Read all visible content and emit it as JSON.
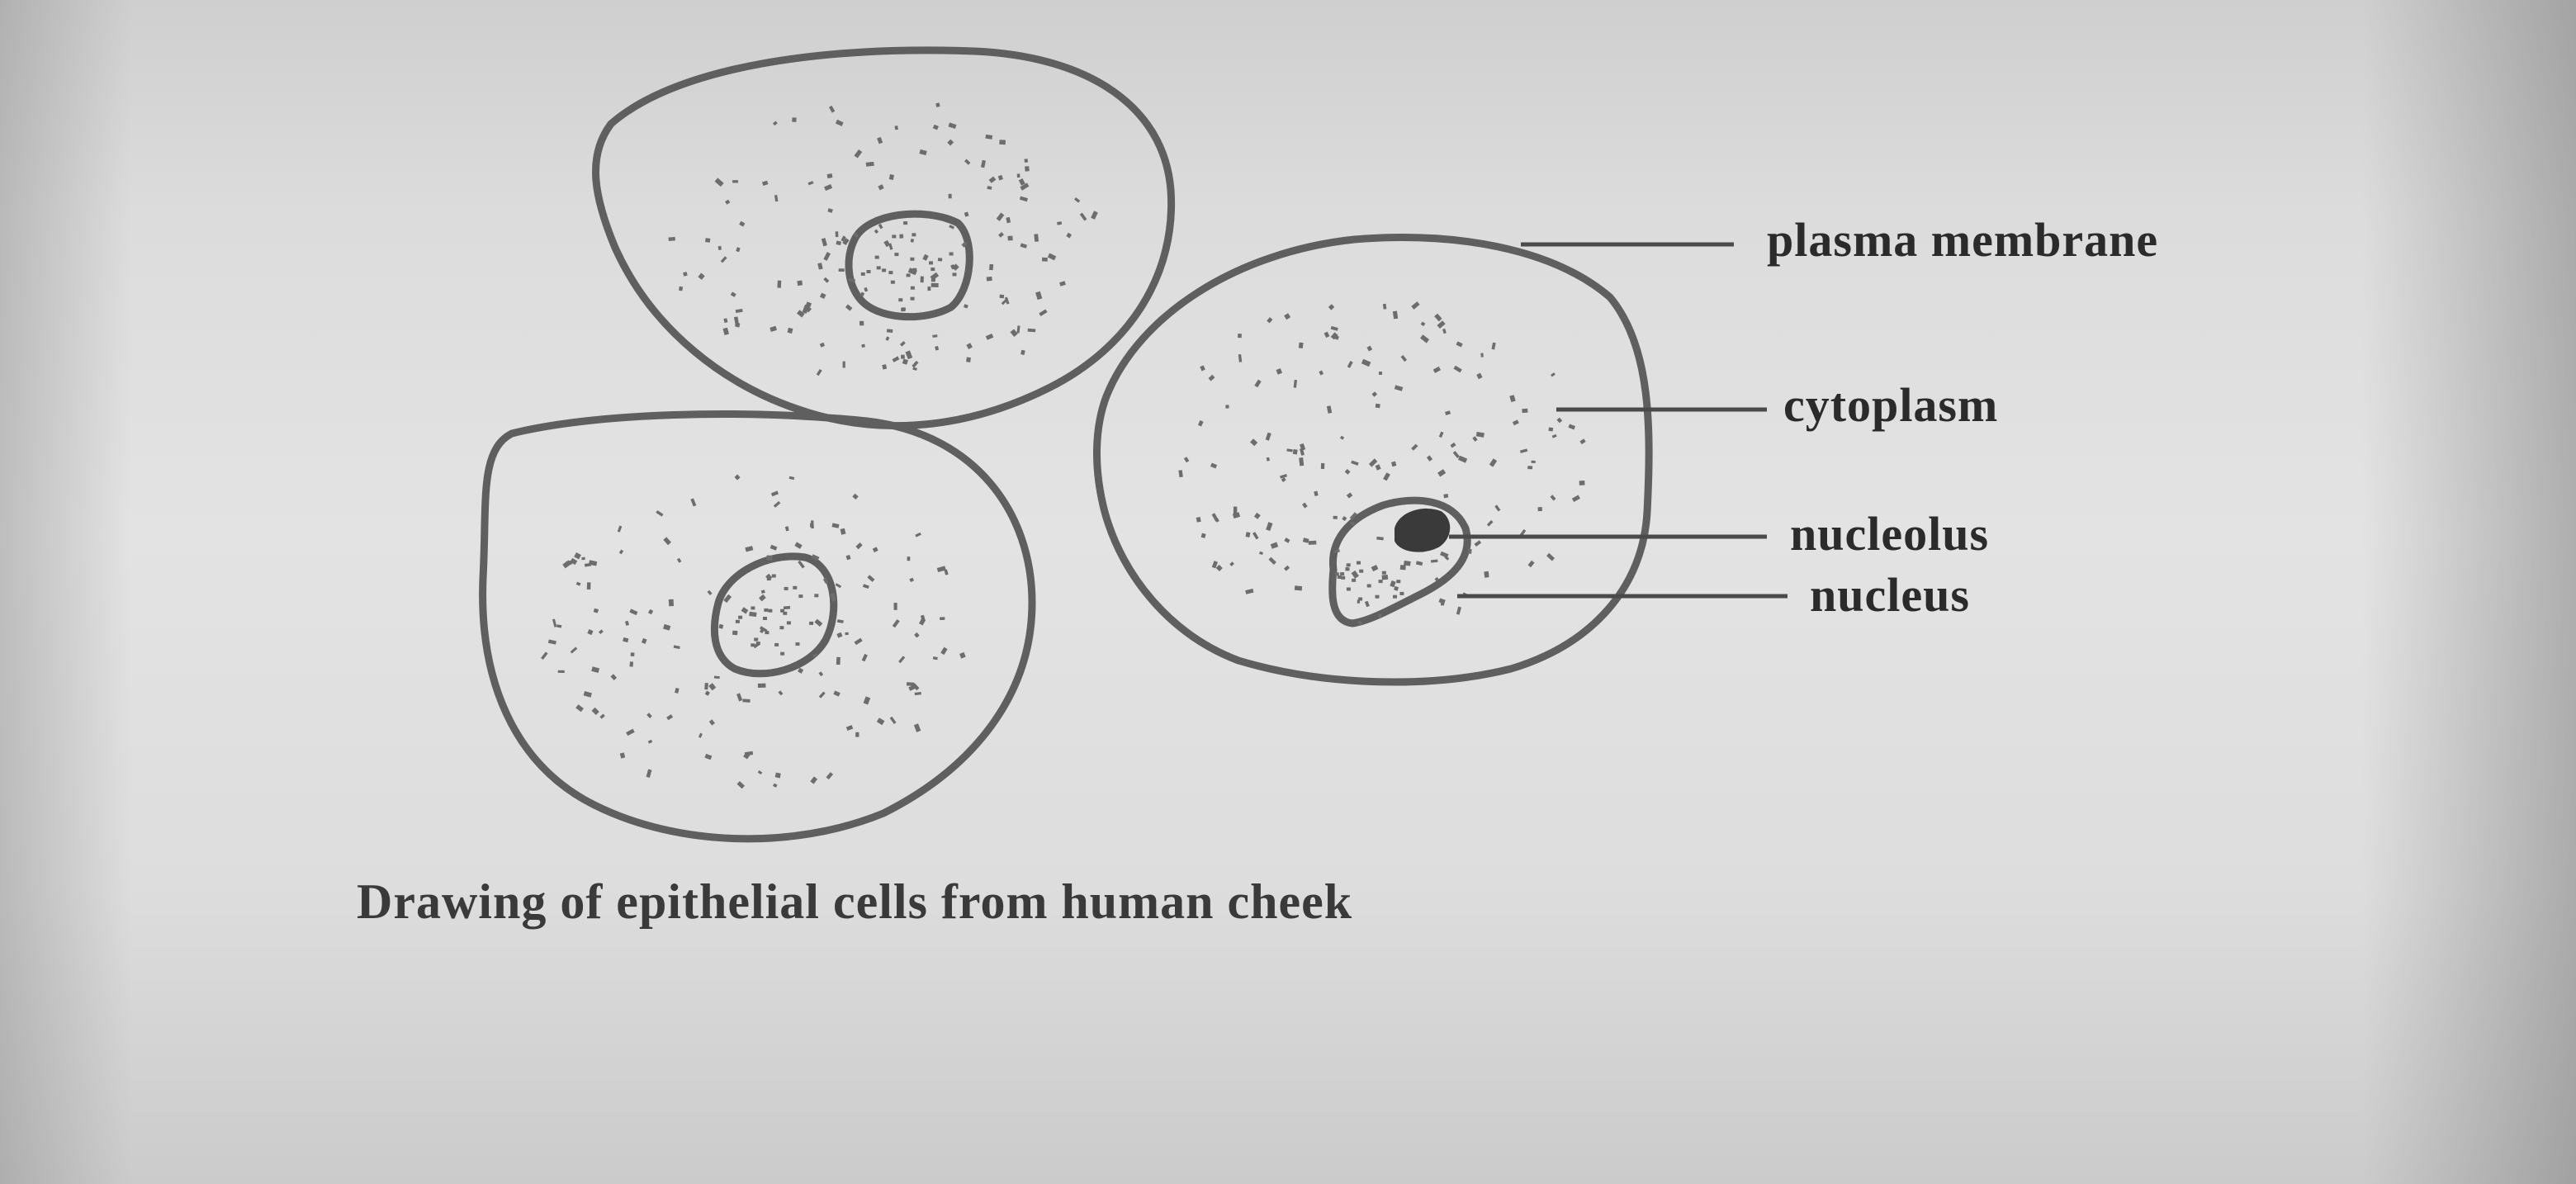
{
  "diagram": {
    "caption": "Drawing of epithelial cells from human cheek",
    "labels": {
      "plasma_membrane": "plasma membrane",
      "cytoplasm": "cytoplasm",
      "nucleolus": "nucleolus",
      "nucleus": "nucleus"
    }
  },
  "colors": {
    "paper": "#e0e0e0",
    "ink": "#5a5a5a",
    "text": "#2b2b2b"
  }
}
